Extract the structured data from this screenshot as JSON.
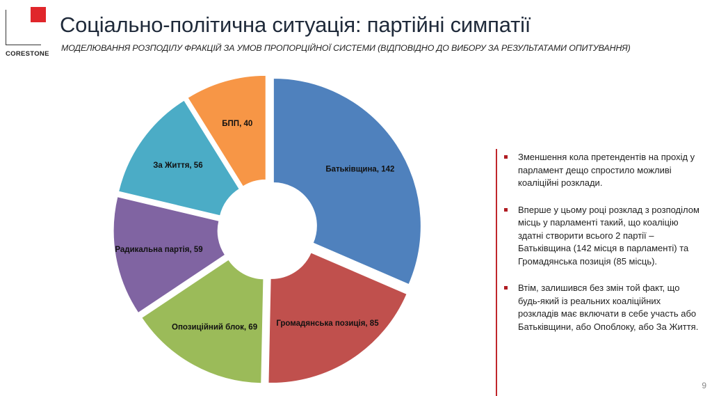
{
  "header": {
    "logo_text": "CORESTONE",
    "title": "Соціально-політична ситуація: партійні симпатії",
    "subtitle": "МОДЕЛЮВАННЯ РОЗПОДІЛУ ФРАКЦІЙ ЗА УМОВ ПРОПОРЦІЙНОЇ СИСТЕМИ (ВІДПОВІДНО ДО ВИБОРУ ЗА РЕЗУЛЬТАТАМИ ОПИТУВАННЯ)"
  },
  "chart_data": {
    "type": "pie",
    "style": "exploded-donut",
    "categories": [
      "Батьківщина",
      "Громадянська позиція",
      "Опозиційний блок",
      "Радикальна партія",
      "За Життя",
      "БПП"
    ],
    "values": [
      142,
      85,
      69,
      59,
      56,
      40
    ],
    "labels": [
      "Батьківщина, 142",
      "Громадянська позиція, 85",
      "Опозиційний блок, 69",
      "Радикальна партія, 59",
      "За Життя, 56",
      "БПП, 40"
    ],
    "colors": [
      "#4f81bd",
      "#c0504d",
      "#9bbb59",
      "#8064a2",
      "#4bacc6",
      "#f79646"
    ],
    "title": "",
    "legend": "none"
  },
  "notes": [
    "Зменшення кола претендентів на прохід у парламент дещо спростило можливі коаліційні розклади.",
    "Вперше у цьому році розклад з розподілом місць у парламенті такий, що коаліцію здатні створити всього 2 партії – Батьківщина (142 місця в парламенті) та  Громадянська позиція (85 місць).",
    "Втім, залишився без змін той факт, що будь-який із реальних коаліційних розкладів має включати в себе участь або Батьківщини, або Опоблоку, або За Життя."
  ],
  "page_number": "9"
}
